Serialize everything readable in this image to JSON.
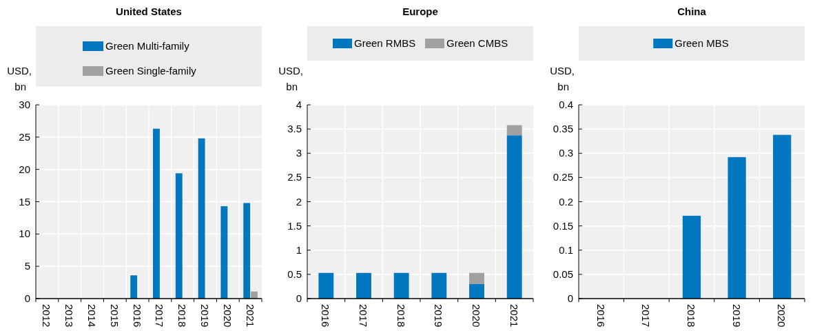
{
  "chart_data": [
    {
      "type": "bar",
      "title": "United States",
      "ylabel": "USD, bn",
      "categories": [
        "2012",
        "2013",
        "2014",
        "2015",
        "2016",
        "2017",
        "2018",
        "2019",
        "2020",
        "2021"
      ],
      "series": [
        {
          "name": "Green Multi-family",
          "color": "#0077be",
          "values": [
            null,
            null,
            0,
            null,
            3.6,
            26.3,
            19.4,
            24.8,
            14.3,
            14.8
          ]
        },
        {
          "name": "Green Single-family",
          "color": "#a0a0a0",
          "values": [
            0,
            0,
            0,
            0,
            0,
            0,
            0,
            0,
            0,
            1.1
          ]
        }
      ],
      "ylim": [
        0,
        30
      ],
      "yticks": [
        0,
        5,
        10,
        15,
        20,
        25,
        30
      ],
      "grid": true,
      "legend": "top"
    },
    {
      "type": "bar",
      "title": "Europe",
      "ylabel": "USD, bn",
      "categories": [
        "2016",
        "2017",
        "2018",
        "2019",
        "2020",
        "2021"
      ],
      "stacked": true,
      "series": [
        {
          "name": "Green RMBS",
          "color": "#0077be",
          "values": [
            0.53,
            0.53,
            0.53,
            0.53,
            0.3,
            3.37
          ]
        },
        {
          "name": "Green CMBS",
          "color": "#a0a0a0",
          "values": [
            0,
            0,
            0,
            0,
            0.23,
            0.21
          ]
        }
      ],
      "ylim": [
        0,
        4
      ],
      "yticks": [
        0,
        0.5,
        1,
        1.5,
        2,
        2.5,
        3,
        3.5,
        4
      ],
      "grid": true,
      "legend": "top"
    },
    {
      "type": "bar",
      "title": "China",
      "ylabel": "USD, bn",
      "categories": [
        "2016",
        "2017",
        "2018",
        "2019",
        "2020"
      ],
      "series": [
        {
          "name": "Green MBS",
          "color": "#0077be",
          "values": [
            0,
            0,
            0.171,
            0.292,
            0.338
          ]
        }
      ],
      "ylim": [
        0,
        0.4
      ],
      "yticks": [
        0,
        0.05,
        0.1,
        0.15,
        0.2,
        0.25,
        0.3,
        0.35,
        0.4
      ],
      "grid": true,
      "legend": "top"
    }
  ]
}
